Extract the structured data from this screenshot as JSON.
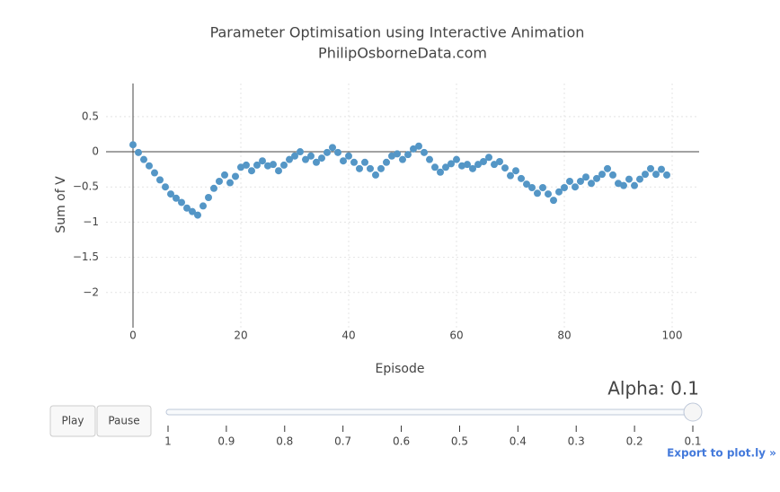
{
  "chart_data": {
    "type": "scatter",
    "title": "Parameter Optimisation using Interactive Animation",
    "subtitle": "PhilipOsborneData.com",
    "x_label": "Episode",
    "y_label": "Sum of V",
    "x": [
      0,
      1,
      2,
      3,
      4,
      5,
      6,
      7,
      8,
      9,
      10,
      11,
      12,
      13,
      14,
      15,
      16,
      17,
      18,
      19,
      20,
      21,
      22,
      23,
      24,
      25,
      26,
      27,
      28,
      29,
      30,
      31,
      32,
      33,
      34,
      35,
      36,
      37,
      38,
      39,
      40,
      41,
      42,
      43,
      44,
      45,
      46,
      47,
      48,
      49,
      50,
      51,
      52,
      53,
      54,
      55,
      56,
      57,
      58,
      59,
      60,
      61,
      62,
      63,
      64,
      65,
      66,
      67,
      68,
      69,
      70,
      71,
      72,
      73,
      74,
      75,
      76,
      77,
      78,
      79,
      80,
      81,
      82,
      83,
      84,
      85,
      86,
      87,
      88,
      89,
      90,
      91,
      92,
      93,
      94,
      95,
      96,
      97,
      98,
      99
    ],
    "values": [
      0.1,
      -0.01,
      -0.11,
      -0.2,
      -0.3,
      -0.4,
      -0.5,
      -0.6,
      -0.66,
      -0.72,
      -0.8,
      -0.85,
      -0.9,
      -0.77,
      -0.65,
      -0.52,
      -0.42,
      -0.33,
      -0.44,
      -0.35,
      -0.22,
      -0.19,
      -0.27,
      -0.19,
      -0.13,
      -0.2,
      -0.18,
      -0.27,
      -0.19,
      -0.11,
      -0.06,
      0.0,
      -0.11,
      -0.06,
      -0.15,
      -0.09,
      -0.01,
      0.06,
      -0.01,
      -0.13,
      -0.06,
      -0.15,
      -0.24,
      -0.15,
      -0.24,
      -0.33,
      -0.24,
      -0.15,
      -0.06,
      -0.03,
      -0.11,
      -0.04,
      0.04,
      0.08,
      -0.01,
      -0.11,
      -0.22,
      -0.29,
      -0.22,
      -0.17,
      -0.11,
      -0.2,
      -0.18,
      -0.24,
      -0.18,
      -0.14,
      -0.08,
      -0.18,
      -0.14,
      -0.23,
      -0.34,
      -0.27,
      -0.38,
      -0.46,
      -0.51,
      -0.59,
      -0.51,
      -0.6,
      -0.69,
      -0.57,
      -0.51,
      -0.42,
      -0.5,
      -0.42,
      -0.36,
      -0.45,
      -0.38,
      -0.32,
      -0.24,
      -0.33,
      -0.45,
      -0.48,
      -0.39,
      -0.48,
      -0.39,
      -0.32,
      -0.24,
      -0.32,
      -0.25,
      -0.33
    ],
    "color": "#5496c6",
    "xlim": [
      -5,
      105
    ],
    "ylim": [
      -2.5,
      0.97
    ],
    "xticks": [
      0,
      20,
      40,
      60,
      80,
      100
    ],
    "yticks": [
      {
        "value": -2,
        "label": "−2"
      },
      {
        "value": -1.5,
        "label": "−1.5"
      },
      {
        "value": -1,
        "label": "−1"
      },
      {
        "value": -0.5,
        "label": "−0.5"
      },
      0,
      0.5
    ],
    "grid": true,
    "zeroline": true
  },
  "controls": {
    "buttons": [
      "Play",
      "Pause"
    ],
    "slider_label": "Alpha: 0.1",
    "slider_steps": [
      1,
      0.9,
      0.8,
      0.7,
      0.6,
      0.5,
      0.4,
      0.3,
      0.2,
      0.1
    ],
    "export_link": "Export to plot.ly »"
  }
}
